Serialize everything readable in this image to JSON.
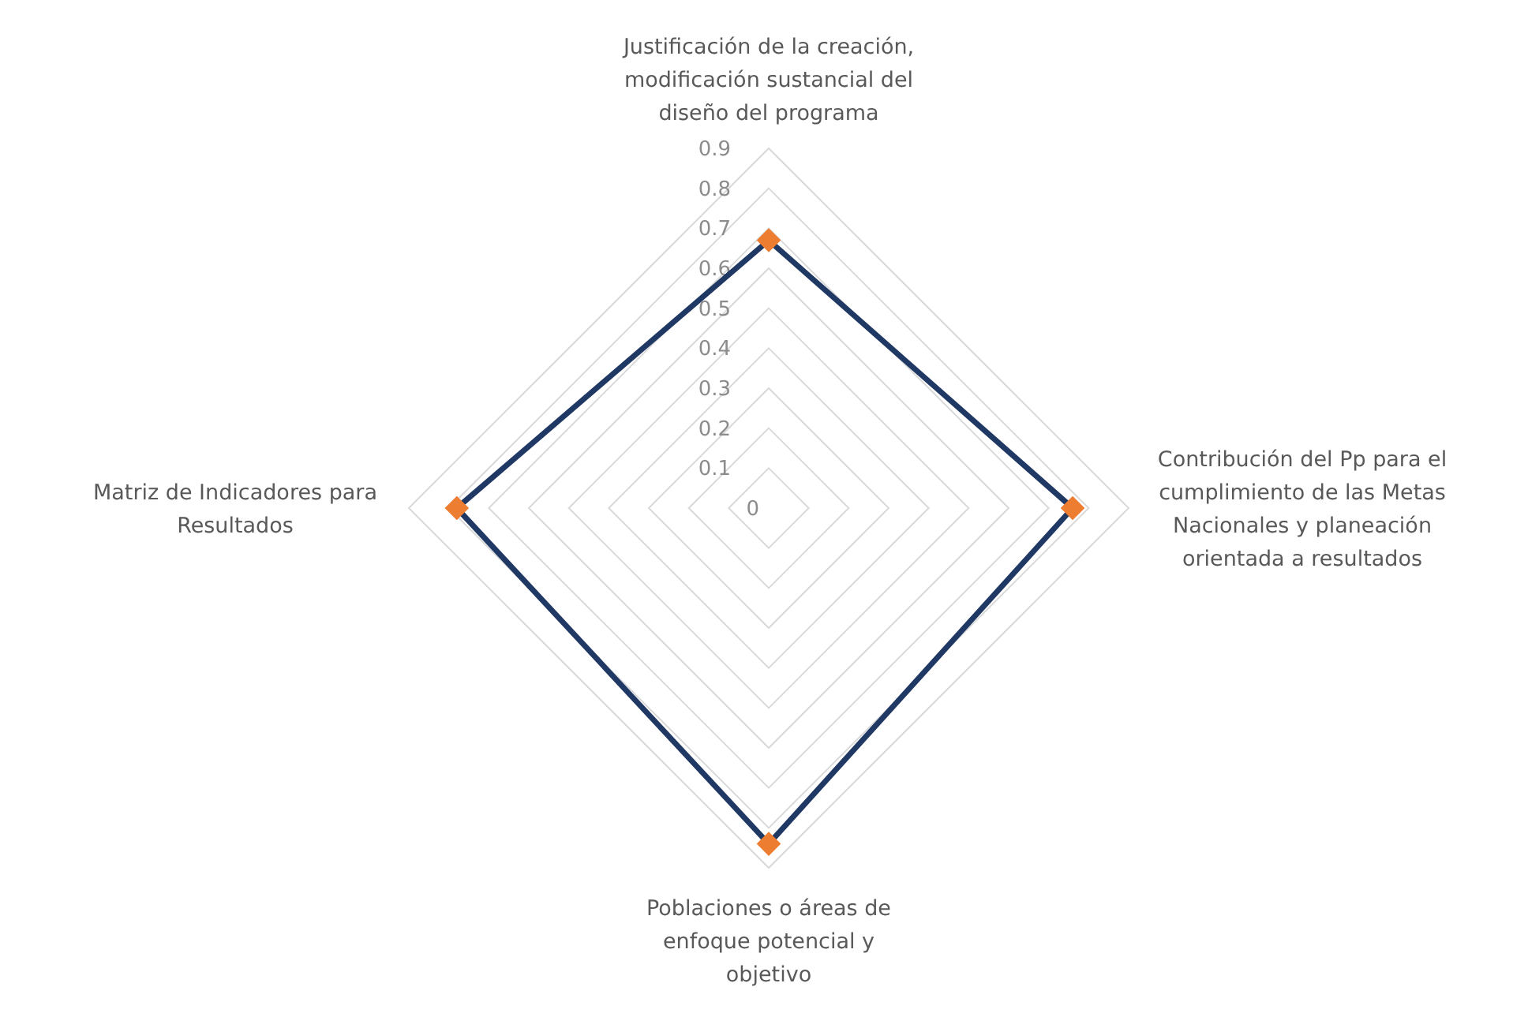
{
  "chart_data": {
    "type": "radar",
    "categories": [
      "Justificación de la creación, modificación sustancial del diseño del programa",
      "Contribución del Pp para el cumplimiento de las Metas Nacionales y planeación orientada a resultados",
      "Poblaciones o áreas de enfoque potencial y objetivo",
      "Matriz de Indicadores para Resultados"
    ],
    "series": [
      {
        "color": "#203864",
        "colors": [
          "#ed7d31",
          "#ed7d31",
          "#ed7d31",
          "#ed7d31"
        ],
        "values": [
          0.67,
          0.76,
          0.84,
          0.78
        ]
      }
    ],
    "ylim": [
      0,
      0.9
    ],
    "yticks": [
      0,
      0.1,
      0.2,
      0.3,
      0.4,
      0.5,
      0.6,
      0.7,
      0.8,
      0.9
    ],
    "grid": true,
    "marker": "diamond",
    "line_style": "solid"
  }
}
